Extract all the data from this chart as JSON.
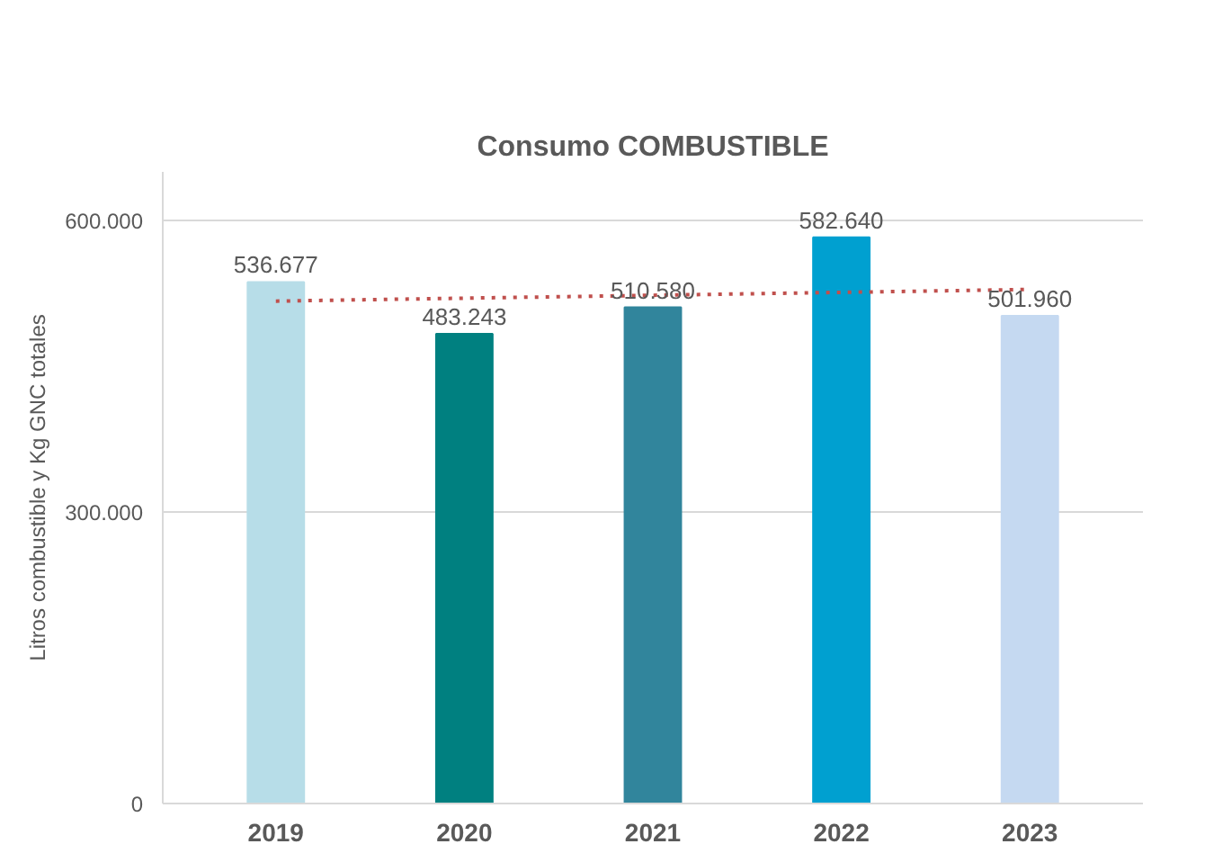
{
  "chart_data": {
    "type": "bar",
    "title": "Consumo COMBUSTIBLE",
    "ylabel": "Litros combustible y Kg GNC totales",
    "categories": [
      "2019",
      "2020",
      "2021",
      "2022",
      "2023"
    ],
    "values": [
      536677,
      483243,
      510580,
      582640,
      501960
    ],
    "colors": [
      "#b7dde8",
      "#008080",
      "#31859c",
      "#00a0d0",
      "#c5d9f1"
    ],
    "value_labels": [
      "536.677",
      "483.243",
      "510.580",
      "582.640",
      "501.960"
    ],
    "series": [
      {
        "type": "line",
        "values": [
          517000,
          520000,
          523000,
          526000,
          529000
        ],
        "color": "#c0504d",
        "line_style": "dotted"
      }
    ],
    "ylim": [
      0,
      650000
    ],
    "yticks": [
      0,
      {
        "value": 300000,
        "label": "300.000"
      },
      {
        "value": 600000,
        "label": "600.000"
      }
    ],
    "grid": "y"
  }
}
